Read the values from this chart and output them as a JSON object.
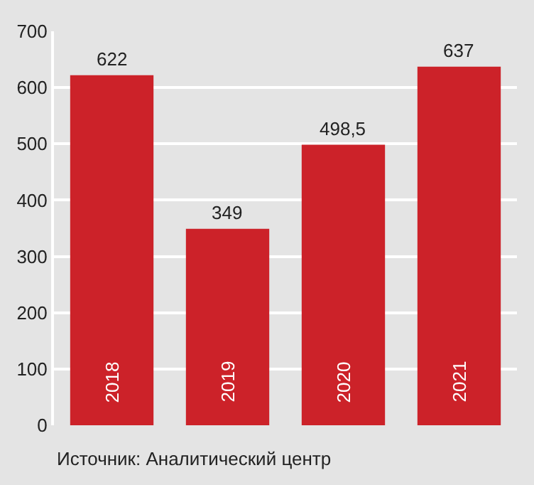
{
  "chart_data": {
    "type": "bar",
    "categories": [
      "2018",
      "2019",
      "2020",
      "2021"
    ],
    "values": [
      622,
      349,
      498.5,
      637
    ],
    "value_labels": [
      "622",
      "349",
      "498,5",
      "637"
    ],
    "color": "#cc2229",
    "ylim": [
      0,
      700
    ],
    "yticks": [
      0,
      100,
      200,
      300,
      400,
      500,
      600,
      700
    ],
    "grid": "y",
    "annotations": [
      "Источник: Аналитический центр"
    ]
  }
}
